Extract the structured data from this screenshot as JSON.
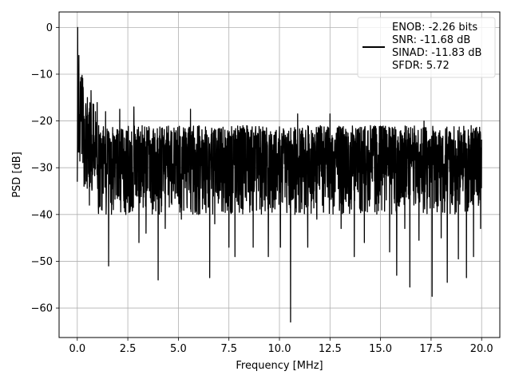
{
  "chart_data": {
    "type": "line",
    "title": "",
    "xlabel": "Frequency [MHz]",
    "ylabel": "PSD [dB]",
    "xlim": [
      -0.9,
      20.9
    ],
    "ylim": [
      -66.3,
      3.3
    ],
    "xticks": [
      0.0,
      2.5,
      5.0,
      7.5,
      10.0,
      12.5,
      15.0,
      17.5,
      20.0
    ],
    "xtick_labels": [
      "0.0",
      "2.5",
      "5.0",
      "7.5",
      "10.0",
      "12.5",
      "15.0",
      "17.5",
      "20.0"
    ],
    "yticks": [
      0,
      -10,
      -20,
      -30,
      -40,
      -50,
      -60
    ],
    "ytick_labels": [
      "0",
      "−10",
      "−20",
      "−30",
      "−40",
      "−50",
      "−60"
    ],
    "grid": true,
    "legend": {
      "placement": "upper-right",
      "lines": [
        "ENOB: -2.26 bits",
        "SNR: -11.68 dB",
        "SINAD: -11.83 dB",
        "SFDR: 5.72"
      ]
    },
    "series": [
      {
        "color": "#000000",
        "frequency_range_mhz": [
          0.0,
          20.0
        ],
        "values_db": [
          [
            0.0,
            -33.0
          ],
          [
            0.02,
            0.0
          ],
          [
            0.05,
            -22.0
          ],
          [
            0.08,
            -6.0
          ],
          [
            0.12,
            -20.0
          ],
          [
            0.16,
            -12.0
          ],
          [
            0.22,
            -27.0
          ],
          [
            0.3,
            -17.0
          ],
          [
            0.4,
            -33.0
          ],
          [
            0.5,
            -15.0
          ],
          [
            0.55,
            -31.0
          ],
          [
            0.6,
            -38.0
          ],
          [
            0.68,
            -13.5
          ],
          [
            0.75,
            -25.0
          ],
          [
            0.82,
            -30.0
          ],
          [
            0.9,
            -18.0
          ],
          [
            1.0,
            -32.0
          ],
          [
            1.4,
            -18.0
          ],
          [
            1.55,
            -51.0
          ],
          [
            2.1,
            -17.5
          ],
          [
            2.4,
            -40.0
          ],
          [
            2.8,
            -17.0
          ],
          [
            3.05,
            -46.0
          ],
          [
            3.4,
            -44.0
          ],
          [
            4.0,
            -54.0
          ],
          [
            4.35,
            -43.0
          ],
          [
            5.15,
            -41.0
          ],
          [
            5.6,
            -17.5
          ],
          [
            6.0,
            -40.0
          ],
          [
            6.55,
            -53.5
          ],
          [
            6.8,
            -42.0
          ],
          [
            7.5,
            -47.0
          ],
          [
            7.8,
            -49.0
          ],
          [
            8.7,
            -47.0
          ],
          [
            9.45,
            -49.0
          ],
          [
            10.05,
            -47.0
          ],
          [
            10.55,
            -63.0
          ],
          [
            10.9,
            -18.5
          ],
          [
            11.4,
            -47.0
          ],
          [
            11.85,
            -41.0
          ],
          [
            12.5,
            -18.5
          ],
          [
            13.05,
            -43.0
          ],
          [
            13.7,
            -49.0
          ],
          [
            14.2,
            -46.0
          ],
          [
            14.5,
            -21.0
          ],
          [
            15.45,
            -48.0
          ],
          [
            15.8,
            -53.0
          ],
          [
            16.2,
            -43.0
          ],
          [
            16.45,
            -55.5
          ],
          [
            16.9,
            -45.5
          ],
          [
            17.15,
            -20.0
          ],
          [
            17.55,
            -57.5
          ],
          [
            18.0,
            -45.0
          ],
          [
            18.3,
            -54.5
          ],
          [
            18.85,
            -49.5
          ],
          [
            19.25,
            -53.5
          ],
          [
            19.6,
            -49.0
          ],
          [
            19.95,
            -43.0
          ],
          [
            20.0,
            -24.0
          ]
        ]
      }
    ]
  }
}
